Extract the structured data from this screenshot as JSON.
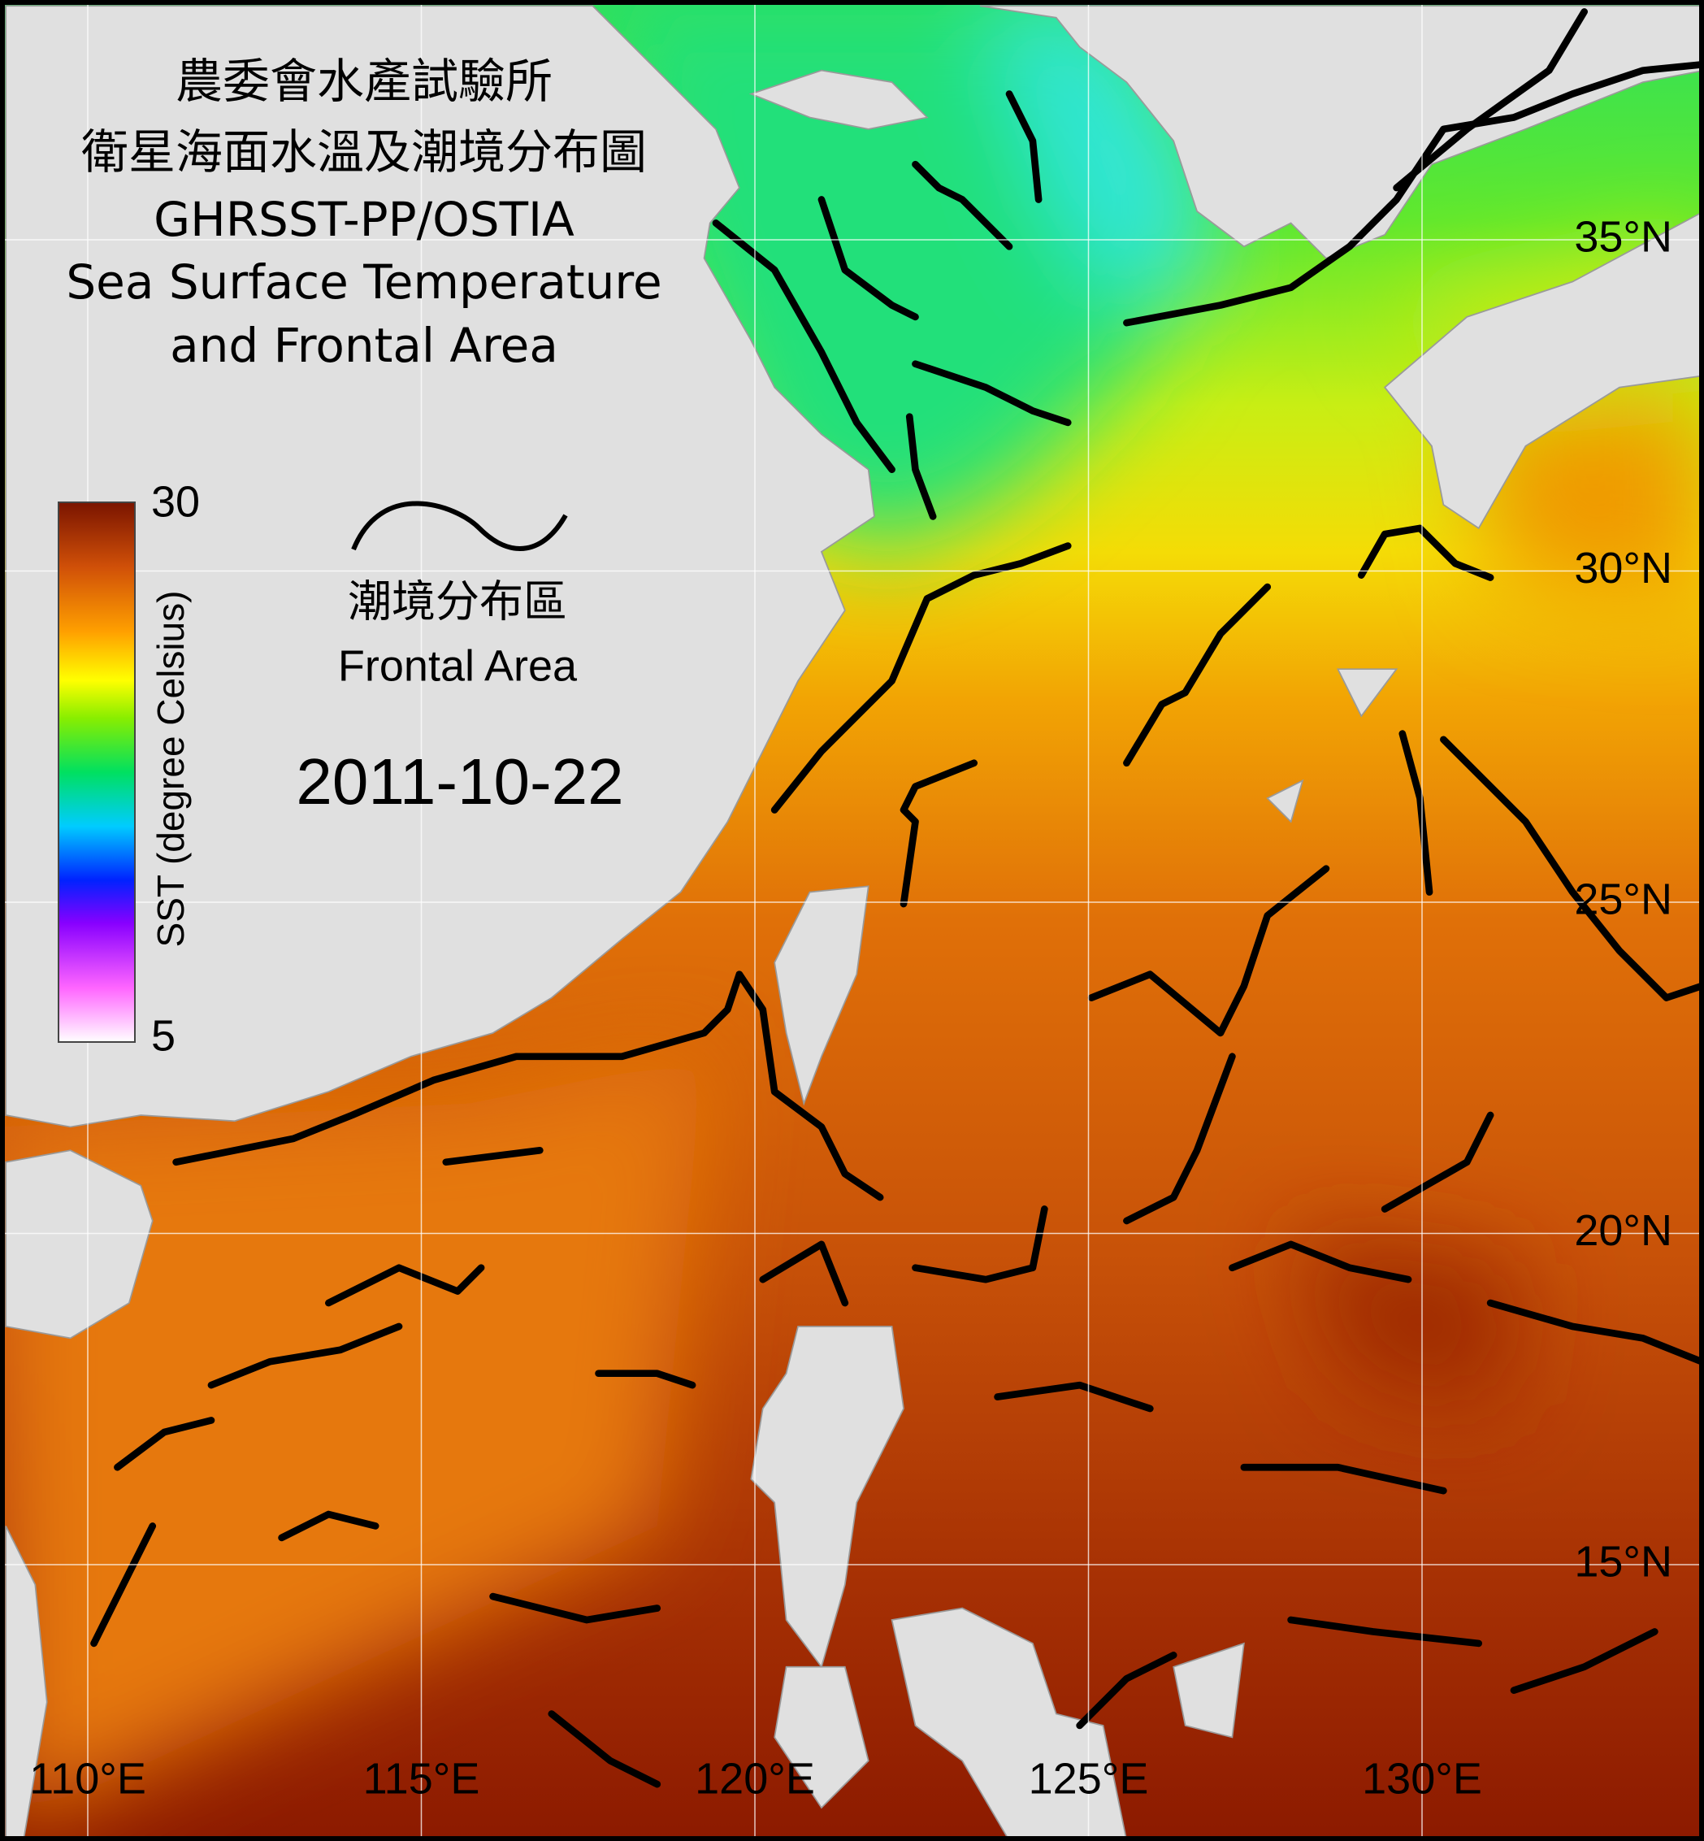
{
  "title": {
    "lines": [
      "農委會水產試驗所",
      "衛星海面水溫及潮境分布圖",
      "GHRSST-PP/OSTIA",
      "Sea Surface Temperature",
      "and Frontal Area"
    ]
  },
  "colorbar": {
    "label": "SST (degree Celsius)",
    "max": 30,
    "min": 5
  },
  "legend": {
    "label_zh": "潮境分布區",
    "label_en": "Frontal Area"
  },
  "date": "2011-10-22",
  "map": {
    "lon_ticks": [
      {
        "value": 110,
        "label": "110°E"
      },
      {
        "value": 115,
        "label": "115°E"
      },
      {
        "value": 120,
        "label": "120°E"
      },
      {
        "value": 125,
        "label": "125°E"
      },
      {
        "value": 130,
        "label": "130°E"
      }
    ],
    "lat_ticks": [
      {
        "value": 15,
        "label": "15°N"
      },
      {
        "value": 20,
        "label": "20°N"
      },
      {
        "value": 25,
        "label": "25°N"
      },
      {
        "value": 30,
        "label": "30°N"
      },
      {
        "value": 35,
        "label": "35°N"
      }
    ]
  }
}
